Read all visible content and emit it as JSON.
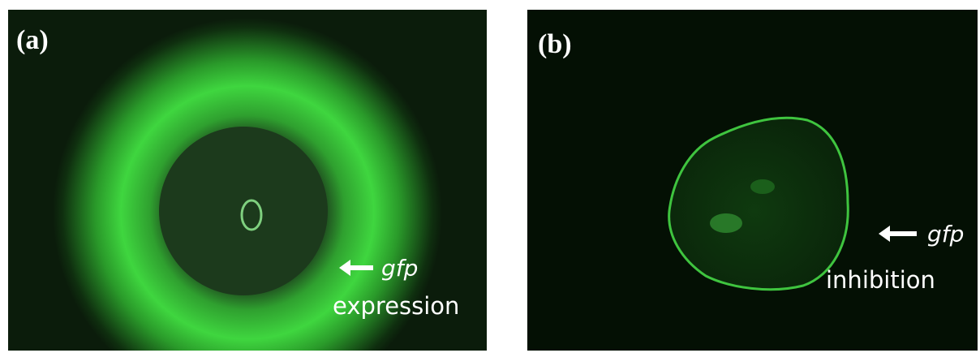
{
  "panels": [
    {
      "label": "(a)",
      "gene": "gfp",
      "caption": "expression"
    },
    {
      "label": "(b)",
      "gene": "gfp",
      "caption": "inhibition"
    }
  ]
}
